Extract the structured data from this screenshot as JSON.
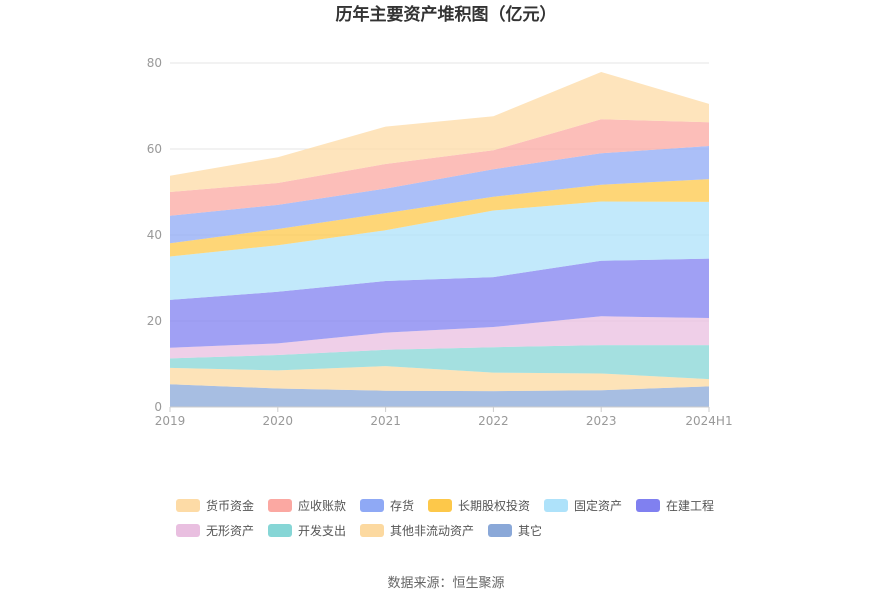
{
  "chart_data": {
    "type": "area",
    "title": "历年主要资产堆积图（亿元）",
    "stacked": true,
    "categories": [
      "2019",
      "2020",
      "2021",
      "2022",
      "2023",
      "2024H1"
    ],
    "ylim": [
      0,
      80
    ],
    "yticks": [
      0,
      20,
      40,
      60,
      80
    ],
    "grid": true,
    "legend_position": "bottom",
    "series": [
      {
        "name": "其它",
        "color": "#8aa8d8",
        "values": [
          5.3,
          4.3,
          3.8,
          3.7,
          3.9,
          4.8
        ]
      },
      {
        "name": "其他非流动资产",
        "color": "#fcd9a0",
        "values": [
          3.8,
          4.2,
          5.7,
          4.3,
          3.9,
          1.7
        ]
      },
      {
        "name": "开发支出",
        "color": "#86d6d6",
        "values": [
          2.2,
          3.6,
          3.8,
          5.9,
          6.6,
          7.9
        ]
      },
      {
        "name": "无形资产",
        "color": "#e9bfe0",
        "values": [
          2.5,
          2.7,
          4.0,
          4.7,
          6.7,
          6.3
        ]
      },
      {
        "name": "在建工程",
        "color": "#8080f0",
        "values": [
          11.1,
          12.0,
          12.0,
          11.6,
          12.9,
          13.8
        ]
      },
      {
        "name": "固定资产",
        "color": "#aee2fa",
        "values": [
          10.1,
          10.8,
          11.8,
          15.5,
          13.8,
          13.2
        ]
      },
      {
        "name": "长期股权投资",
        "color": "#fdc84a",
        "values": [
          3.1,
          3.8,
          4.0,
          3.2,
          3.9,
          5.3
        ]
      },
      {
        "name": "存货",
        "color": "#8fa9f5",
        "values": [
          6.4,
          5.6,
          5.7,
          6.4,
          7.3,
          7.7
        ]
      },
      {
        "name": "应收账款",
        "color": "#fba8a2",
        "values": [
          5.5,
          5.1,
          5.7,
          4.4,
          7.9,
          5.5
        ]
      },
      {
        "name": "货币资金",
        "color": "#fddba6",
        "values": [
          3.8,
          6.0,
          8.7,
          7.9,
          11.0,
          4.3
        ]
      }
    ],
    "legend_order": [
      "货币资金",
      "应收账款",
      "存货",
      "长期股权投资",
      "固定资产",
      "在建工程",
      "无形资产",
      "开发支出",
      "其他非流动资产",
      "其它"
    ]
  },
  "source_text": "数据来源：恒生聚源"
}
